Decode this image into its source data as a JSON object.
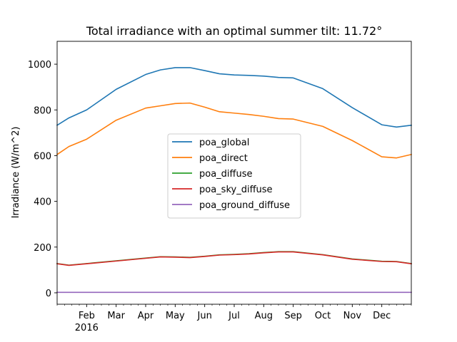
{
  "chart_data": {
    "type": "line",
    "title": "Total irradiance with an optimal summer tilt: 11.72°",
    "xlabel": "",
    "ylabel": "Irradiance (W/m^2)",
    "ylim": [
      -50,
      1100
    ],
    "y_ticks": [
      0,
      200,
      400,
      600,
      800,
      1000
    ],
    "x_range_months": [
      0,
      12
    ],
    "x_ticks": [
      {
        "label": "Feb",
        "month": 1
      },
      {
        "label": "Mar",
        "month": 2
      },
      {
        "label": "Apr",
        "month": 3
      },
      {
        "label": "May",
        "month": 4
      },
      {
        "label": "Jun",
        "month": 5
      },
      {
        "label": "Jul",
        "month": 6
      },
      {
        "label": "Aug",
        "month": 7
      },
      {
        "label": "Sep",
        "month": 8
      },
      {
        "label": "Oct",
        "month": 9
      },
      {
        "label": "Nov",
        "month": 10
      },
      {
        "label": "Dec",
        "month": 11
      }
    ],
    "year_label": "2016",
    "x": [
      0,
      0.4,
      1,
      2,
      3,
      3.5,
      4,
      4.5,
      5,
      5.5,
      6,
      6.5,
      7,
      7.5,
      8,
      9,
      10,
      11,
      11.5,
      12
    ],
    "legend_position": "center",
    "series": [
      {
        "name": "poa_global",
        "color": "#1f77b4",
        "values": [
          733,
          765,
          800,
          890,
          955,
          975,
          985,
          985,
          972,
          958,
          953,
          951,
          948,
          942,
          940,
          893,
          810,
          735,
          725,
          733
        ]
      },
      {
        "name": "poa_direct",
        "color": "#ff7f0e",
        "values": [
          605,
          640,
          672,
          755,
          808,
          818,
          828,
          830,
          812,
          792,
          786,
          780,
          772,
          762,
          760,
          728,
          666,
          595,
          590,
          605
        ]
      },
      {
        "name": "poa_diffuse",
        "color": "#2ca02c",
        "values": [
          128,
          121,
          128,
          140,
          152,
          158,
          157,
          155,
          160,
          166,
          168,
          171,
          176,
          180,
          180,
          167,
          148,
          138,
          137,
          128
        ]
      },
      {
        "name": "poa_sky_diffuse",
        "color": "#d62728",
        "values": [
          127,
          120,
          127,
          139,
          151,
          157,
          156,
          154,
          159,
          165,
          167,
          170,
          175,
          179,
          179,
          166,
          147,
          137,
          136,
          127
        ]
      },
      {
        "name": "poa_ground_diffuse",
        "color": "#9467bd",
        "values": [
          2,
          2,
          2,
          2,
          2,
          2,
          2,
          2,
          2,
          2,
          2,
          2,
          2,
          2,
          2,
          2,
          2,
          2,
          2,
          2
        ]
      }
    ]
  }
}
